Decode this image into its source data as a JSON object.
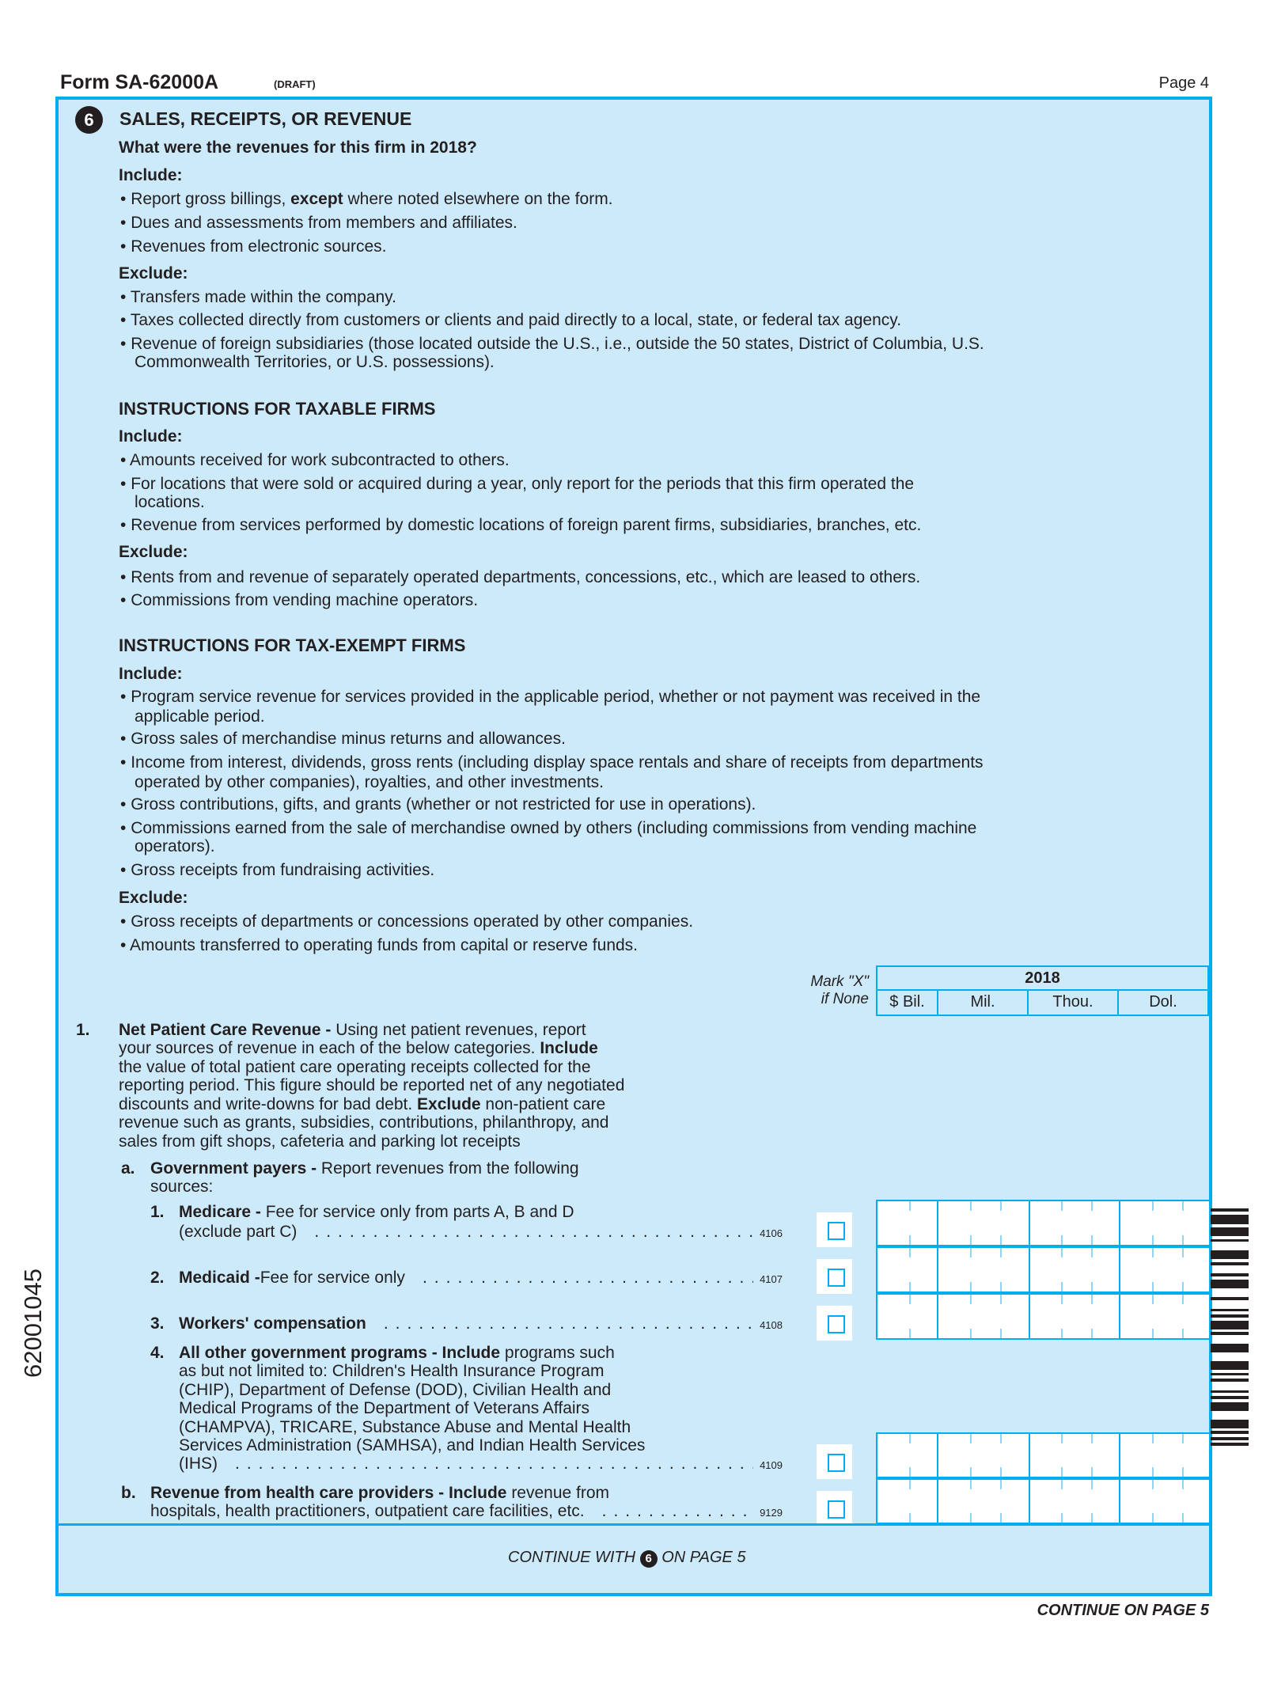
{
  "header": {
    "form_title": "Form SA-62000A",
    "draft": "(DRAFT)",
    "page": "Page 4"
  },
  "side_code": "62001045",
  "section": {
    "number": "6",
    "title": "SALES, RECEIPTS, OR REVENUE",
    "question": "What were the revenues for this firm in 2018?",
    "include_label": "Include:",
    "include": [
      {
        "parts": [
          "Report gross billings, ",
          "except",
          " where noted elsewhere on the form."
        ]
      },
      {
        "lines": [
          "Dues and assessments from members and affiliates."
        ]
      },
      {
        "lines": [
          "Revenues from electronic sources."
        ]
      }
    ],
    "exclude_label": "Exclude:",
    "exclude": [
      {
        "lines": [
          "Transfers made within the company."
        ]
      },
      {
        "lines": [
          "Taxes collected directly from customers or clients and paid directly to a local, state, or federal tax agency."
        ]
      },
      {
        "lines": [
          "Revenue of foreign subsidiaries (those located outside the U.S., i.e., outside the 50 states, District of Columbia, U.S.",
          "Commonwealth Territories, or U.S. possessions)."
        ]
      }
    ]
  },
  "taxable": {
    "title": "INSTRUCTIONS FOR TAXABLE FIRMS",
    "include_label": "Include:",
    "include": [
      {
        "lines": [
          "Amounts received for work subcontracted to others."
        ]
      },
      {
        "lines": [
          "For locations that were sold or acquired during a year, only report for the periods that this firm operated the",
          "locations."
        ]
      },
      {
        "lines": [
          "Revenue from services performed by domestic locations of foreign parent firms, subsidiaries, branches, etc."
        ]
      }
    ],
    "exclude_label": "Exclude:",
    "exclude": [
      {
        "lines": [
          "Rents from and revenue of separately operated departments, concessions, etc., which are leased to others."
        ]
      },
      {
        "lines": [
          "Commissions from vending machine operators."
        ]
      }
    ]
  },
  "tax_exempt": {
    "title": "INSTRUCTIONS FOR TAX-EXEMPT FIRMS",
    "include_label": "Include:",
    "include": [
      {
        "lines": [
          "Program service revenue for services provided in the applicable period, whether or not payment was received in the",
          "applicable period."
        ]
      },
      {
        "lines": [
          "Gross sales of merchandise minus returns and allowances."
        ]
      },
      {
        "lines": [
          "Income from interest, dividends, gross rents (including display space rentals and share of receipts from departments",
          "operated by other companies), royalties, and other investments."
        ]
      },
      {
        "lines": [
          "Gross contributions, gifts, and grants (whether or not restricted for use in operations)."
        ]
      },
      {
        "lines": [
          "Commissions earned from the sale of merchandise owned by others (including commissions from vending machine",
          "operators)."
        ]
      },
      {
        "lines": [
          "Gross receipts from fundraising activities."
        ]
      }
    ],
    "exclude_label": "Exclude:",
    "exclude": [
      {
        "lines": [
          "Gross receipts of departments or concessions operated by other companies."
        ]
      },
      {
        "lines": [
          "Amounts transferred to operating funds from capital or reserve funds."
        ]
      }
    ]
  },
  "grid_header": {
    "mark_line1": "Mark \"X\"",
    "mark_line2": "if None",
    "year": "2018",
    "columns": [
      "$ Bil.",
      "Mil.",
      "Thou.",
      "Dol."
    ]
  },
  "item1": {
    "number": "1.",
    "lines": [
      [
        "Net Patient Care Revenue - ",
        "Using net patient revenues, report"
      ],
      [
        "your sources of revenue in each of the below categories. ",
        "Include"
      ],
      [
        "the value of total patient care operating receipts collected for the"
      ],
      [
        "reporting period. This figure should be reported net of any negotiated"
      ],
      [
        "discounts and write-downs for bad debt. ",
        "Exclude",
        " non-patient care"
      ],
      [
        "revenue such as grants, subsidies, contributions, philanthropy, and"
      ],
      [
        "sales from gift shops, cafeteria and parking lot receipts"
      ]
    ],
    "a": {
      "letter": "a.",
      "bold": "Government payers - ",
      "text": "Report revenues from the following",
      "line2": "sources:",
      "items": [
        {
          "number": "1.",
          "bold": "Medicare - ",
          "text": "Fee for service only from parts A, B and D",
          "line2": "(exclude part C)",
          "code": "4106",
          "none_checked": false
        },
        {
          "number": "2.",
          "bold": "Medicaid - ",
          "text": "Fee for service only",
          "code": "4107",
          "none_checked": false
        },
        {
          "number": "3.",
          "bold": "Workers' compensation",
          "code": "4108",
          "none_checked": false
        },
        {
          "number": "4.",
          "bold": "All other government programs - Include ",
          "text": "programs such",
          "lines": [
            "as but not limited to: Children's Health Insurance Program",
            "(CHIP), Department of Defense (DOD), Civilian Health and",
            "Medical Programs of the Department of Veterans Affairs",
            "(CHAMPVA), TRICARE, Substance Abuse and Mental Health",
            "Services Administration (SAMHSA), and Indian Health Services",
            "(IHS)"
          ],
          "code": "4109",
          "none_checked": false
        }
      ]
    },
    "b": {
      "letter": "b.",
      "bold": "Revenue from health care providers - Include ",
      "text": "revenue from",
      "line2": "hospitals, health practitioners, outpatient care facilities, etc.",
      "code": "9129",
      "none_checked": false
    }
  },
  "footer": {
    "continue_with_prefix": "CONTINUE WITH",
    "continue_with_number": "6",
    "continue_with_suffix": "ON PAGE 5",
    "continue_page": "CONTINUE ON PAGE 5"
  },
  "colors": {
    "accent": "#00aeef",
    "panel": "#cdeafa",
    "text": "#231f20"
  }
}
